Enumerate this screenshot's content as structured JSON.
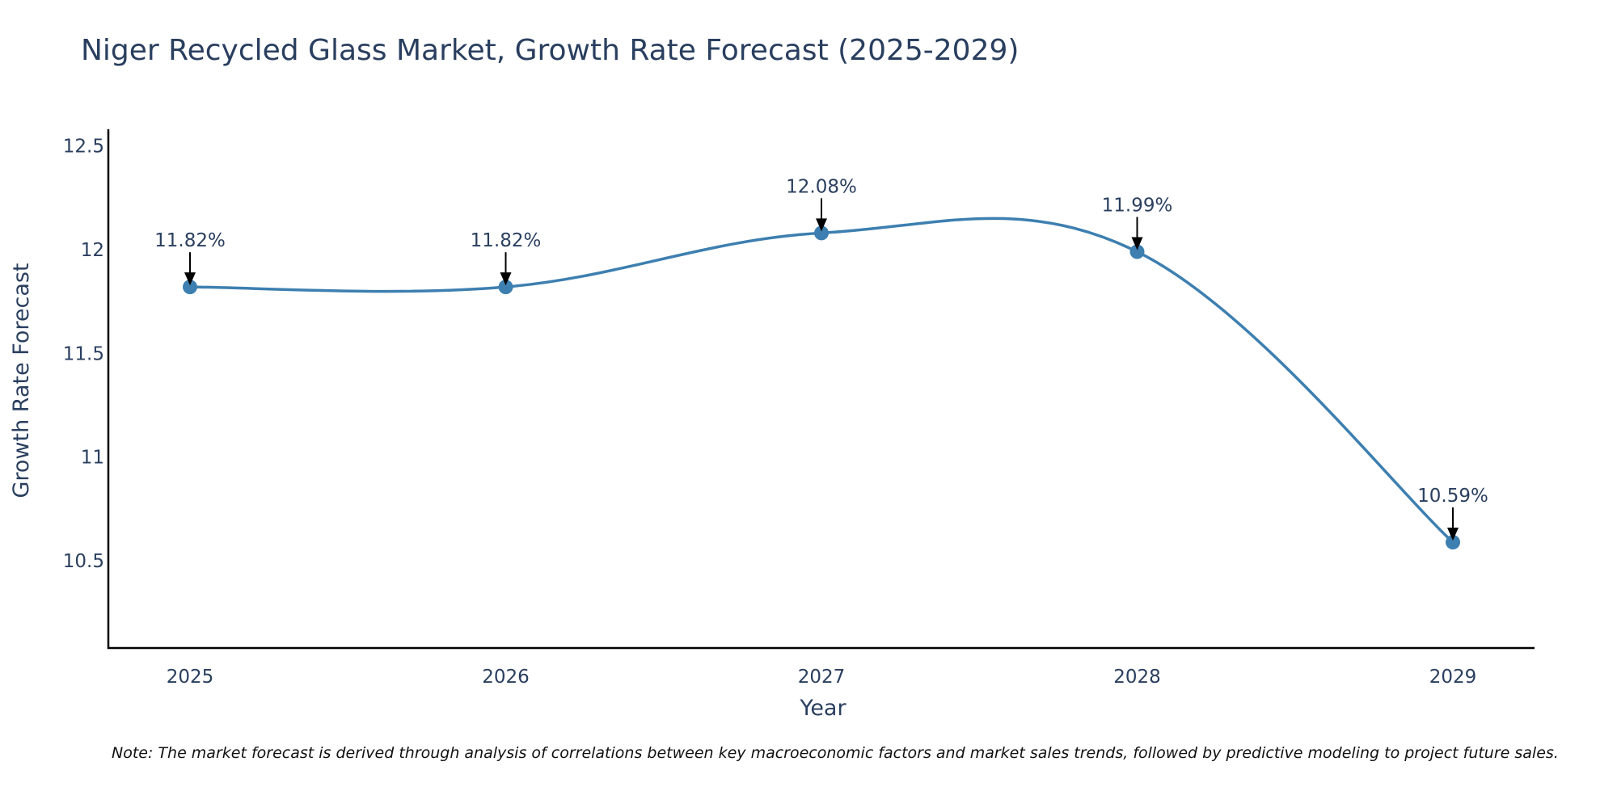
{
  "chart_data": {
    "type": "line",
    "title": "Niger Recycled Glass Market, Growth Rate Forecast (2025-2029)",
    "xlabel": "Year",
    "ylabel": "Growth Rate Forecast",
    "categories": [
      "2025",
      "2026",
      "2027",
      "2028",
      "2029"
    ],
    "series": [
      {
        "name": "Growth Rate Forecast",
        "values": [
          11.82,
          11.82,
          12.08,
          11.99,
          10.59
        ],
        "labels": [
          "11.82%",
          "11.82%",
          "12.08%",
          "11.99%",
          "10.59%"
        ]
      }
    ],
    "yticks": [
      "10.5",
      "11",
      "11.5",
      "12",
      "12.5"
    ],
    "ylim": [
      10.08,
      12.58
    ],
    "grid": false,
    "line_shape": "spline",
    "line_color": "#3d7fb0",
    "marker_color": "#3d7fb0",
    "arrow_color": "#000000",
    "note": "Note: The market forecast is derived through analysis of correlations between key macroeconomic factors and market sales trends, followed by predictive modeling to project future sales."
  }
}
